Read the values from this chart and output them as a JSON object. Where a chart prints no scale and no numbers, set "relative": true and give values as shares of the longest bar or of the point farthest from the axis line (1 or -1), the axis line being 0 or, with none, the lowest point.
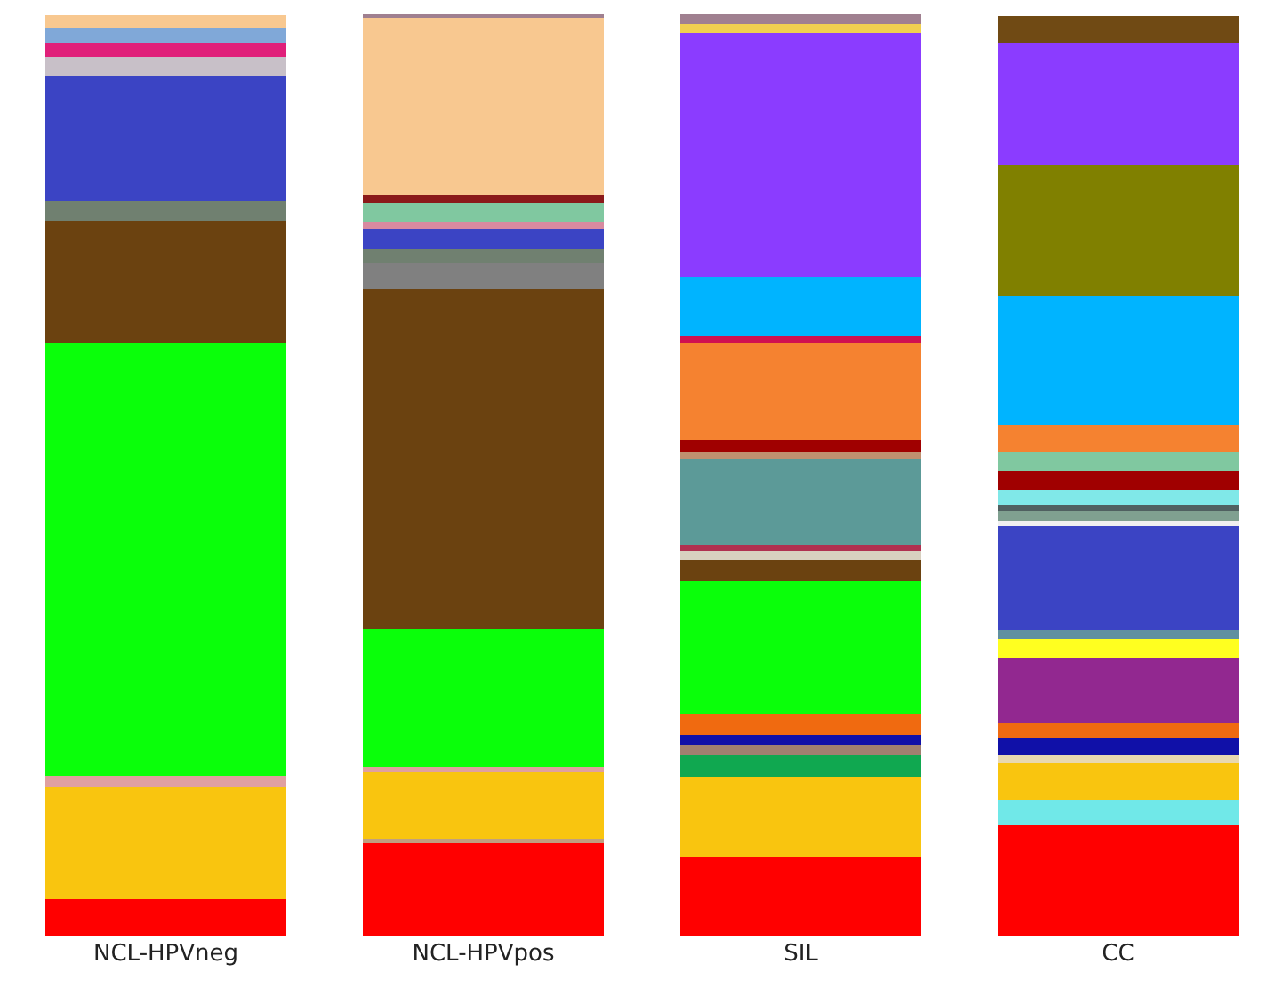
{
  "chart_data": {
    "type": "bar",
    "stacked": true,
    "relative": true,
    "categories": [
      "NCL-HPVneg",
      "NCL-HPVpos",
      "SIL",
      "CC"
    ],
    "series": [
      {
        "color": "#ff0000",
        "values": [
          0.04,
          0.1,
          0.085,
          0.12
        ]
      },
      {
        "color": "#c0a080",
        "values": [
          null,
          0.005,
          null,
          null
        ]
      },
      {
        "color": "#70e8e8",
        "values": [
          null,
          null,
          null,
          0.027
        ]
      },
      {
        "color": "#f9c50f",
        "values": [
          0.121,
          0.073,
          0.087,
          0.04
        ]
      },
      {
        "color": "#e8d8b0",
        "values": [
          null,
          null,
          null,
          0.009
        ]
      },
      {
        "color": "#10a850",
        "values": [
          null,
          null,
          0.024,
          null
        ]
      },
      {
        "color": "#a08070",
        "values": [
          null,
          null,
          0.011,
          null
        ]
      },
      {
        "color": "#1010a8",
        "values": [
          null,
          null,
          0.01,
          0.018
        ]
      },
      {
        "color": "#f06a10",
        "values": [
          null,
          null,
          0.023,
          0.017
        ]
      },
      {
        "color": "#922890",
        "values": [
          null,
          null,
          null,
          0.07
        ]
      },
      {
        "color": "#ffff20",
        "values": [
          null,
          null,
          null,
          0.02
        ]
      },
      {
        "color": "#6090a0",
        "values": [
          null,
          null,
          null,
          0.011
        ]
      },
      {
        "color": "#e0a0a0",
        "values": [
          0.012,
          0.005,
          null,
          null
        ]
      },
      {
        "color": "#0aff0a",
        "values": [
          0.47,
          0.15,
          0.145,
          null
        ]
      },
      {
        "color": "#6b4210",
        "values": [
          0.133,
          0.369,
          0.022,
          null
        ]
      },
      {
        "color": "#d8d0c0",
        "values": [
          null,
          null,
          0.01,
          null
        ]
      },
      {
        "color": "#b03050",
        "values": [
          null,
          null,
          0.007,
          null
        ]
      },
      {
        "color": "#5c9a98",
        "values": [
          null,
          null,
          0.093,
          null
        ]
      },
      {
        "color": "#c09070",
        "values": [
          null,
          null,
          0.008,
          null
        ]
      },
      {
        "color": "#808080",
        "values": [
          null,
          0.028,
          null,
          null
        ]
      },
      {
        "color": "#708070",
        "values": [
          0.021,
          0.015,
          null,
          null
        ]
      },
      {
        "color": "#3b44c4",
        "values": [
          0.135,
          0.022,
          null,
          0.113
        ]
      },
      {
        "color": "#f0f0f0",
        "values": [
          null,
          null,
          null,
          0.005
        ]
      },
      {
        "color": "#80a090",
        "values": [
          null,
          null,
          null,
          0.01
        ]
      },
      {
        "color": "#506060",
        "values": [
          null,
          null,
          null,
          0.007
        ]
      },
      {
        "color": "#80e8e8",
        "values": [
          null,
          null,
          null,
          0.017
        ]
      },
      {
        "color": "#c8c0c8",
        "values": [
          0.022,
          null,
          null,
          null
        ]
      },
      {
        "color": "#d88aa0",
        "values": [
          null,
          0.007,
          null,
          null
        ]
      },
      {
        "color": "#a00000",
        "values": [
          null,
          null,
          0.013,
          0.02
        ]
      },
      {
        "color": "#80c8a0",
        "values": [
          null,
          0.021,
          null,
          0.021
        ]
      },
      {
        "color": "#e0207a",
        "values": [
          0.015,
          null,
          null,
          null
        ]
      },
      {
        "color": "#8b1a1a",
        "values": [
          null,
          0.009,
          null,
          null
        ]
      },
      {
        "color": "#f58230",
        "values": [
          null,
          null,
          0.105,
          0.029
        ]
      },
      {
        "color": "#d01050",
        "values": [
          null,
          null,
          0.008,
          null
        ]
      },
      {
        "color": "#00b4ff",
        "values": [
          null,
          null,
          0.064,
          0.14
        ]
      },
      {
        "color": "#808000",
        "values": [
          null,
          null,
          null,
          0.143
        ]
      },
      {
        "color": "#80a8d8",
        "values": [
          0.017,
          null,
          null,
          null
        ]
      },
      {
        "color": "#f8c890",
        "values": [
          0.013,
          0.193,
          null,
          null
        ]
      },
      {
        "color": "#8b3cff",
        "values": [
          null,
          null,
          0.265,
          0.132
        ]
      },
      {
        "color": "#f0d050",
        "values": [
          null,
          null,
          0.009,
          null
        ]
      },
      {
        "color": "#a08090",
        "values": [
          null,
          0.003,
          0.011,
          null
        ]
      },
      {
        "color": "#704a14",
        "values": [
          null,
          null,
          null,
          0.029
        ]
      }
    ]
  }
}
